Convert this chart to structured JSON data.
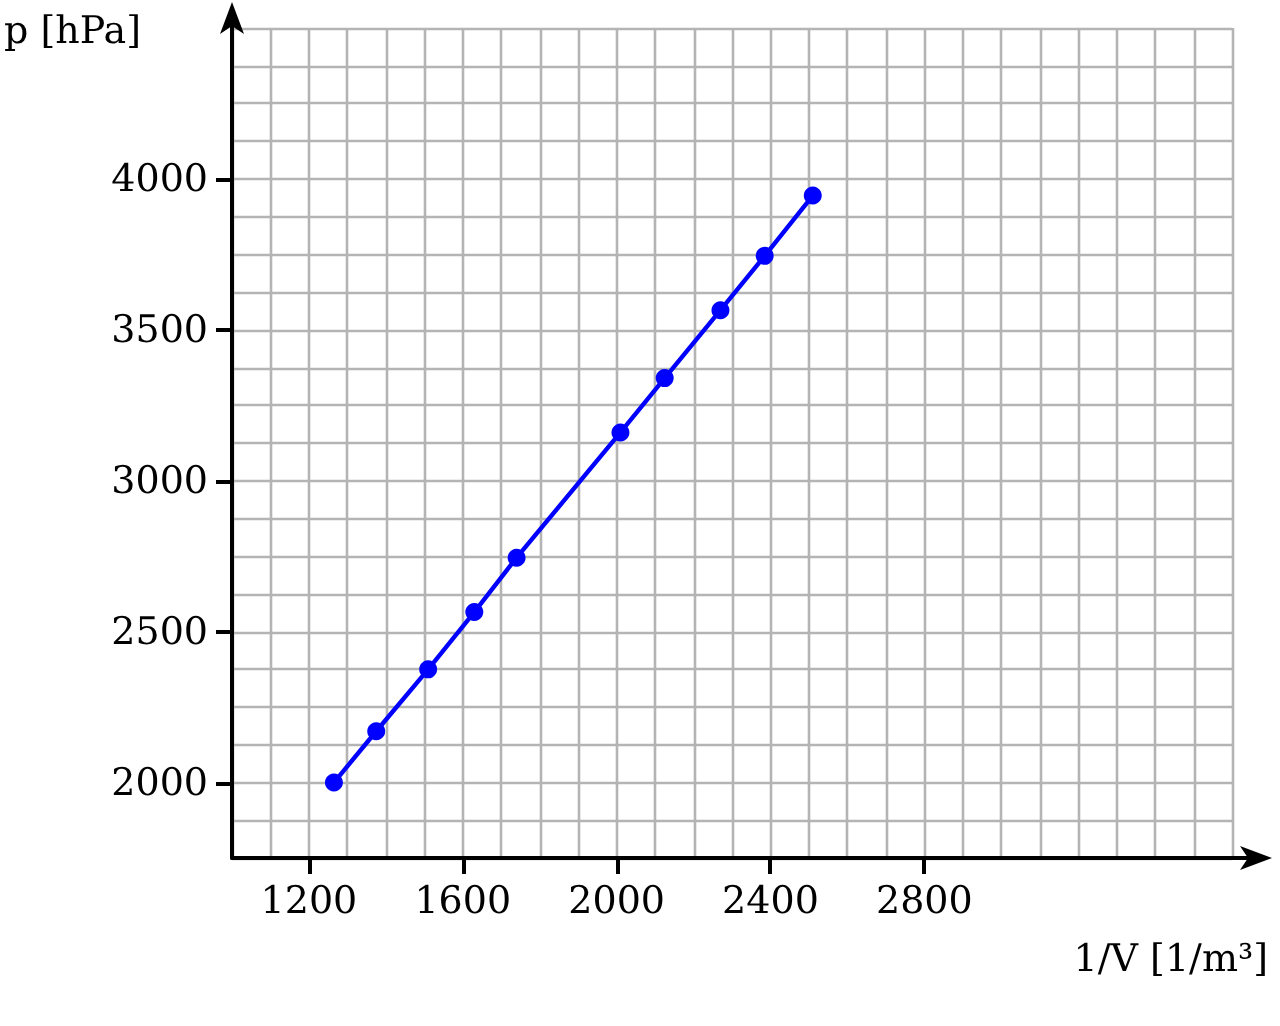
{
  "chart_data": {
    "type": "line",
    "xlabel": "1/V [1/m³]",
    "ylabel": "p [hPa]",
    "x": [
      1265,
      1375,
      1510,
      1630,
      1740,
      2010,
      2125,
      2270,
      2385,
      2510
    ],
    "series": [
      {
        "color": "#0000ff",
        "values": [
          2000,
          2170,
          2375,
          2565,
          2745,
          3160,
          3340,
          3565,
          3745,
          3945
        ]
      }
    ],
    "xlim": [
      1000,
      3600
    ],
    "xticks": [
      1200,
      1600,
      2000,
      2400,
      2800
    ],
    "ylim": [
      1750,
      4500
    ],
    "yticks": [
      2000,
      2500,
      3000,
      3500,
      4000
    ],
    "grid": true,
    "marker": "circle",
    "line_style": "solid"
  }
}
